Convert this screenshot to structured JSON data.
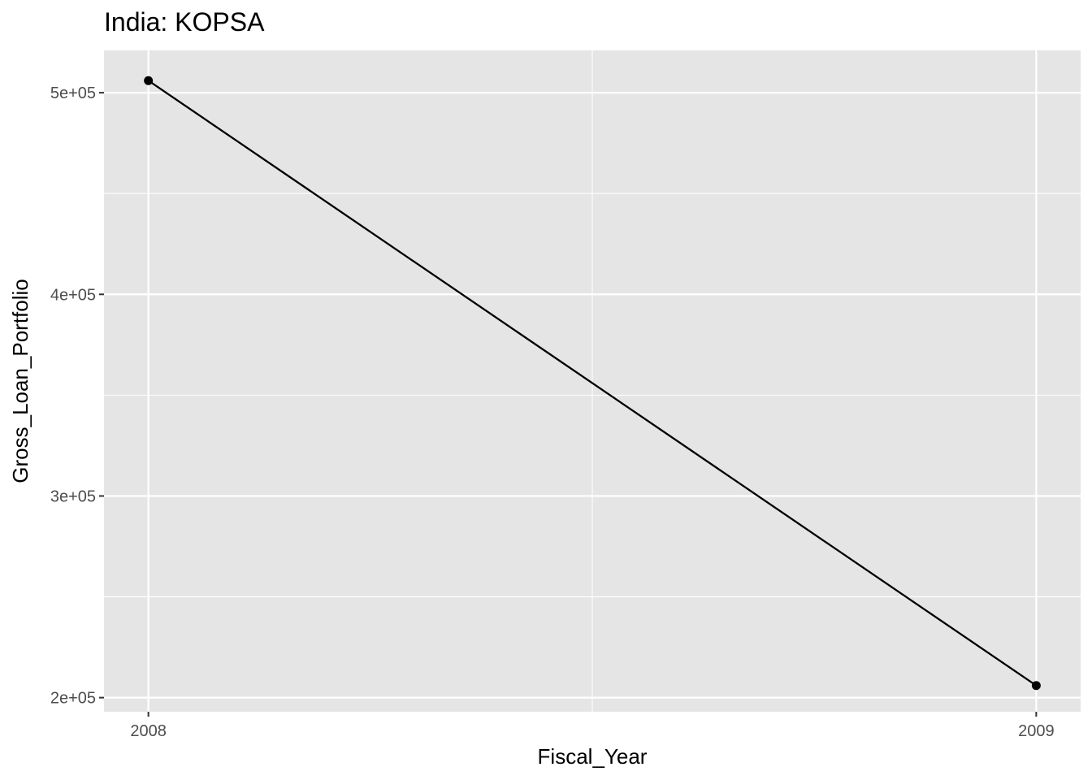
{
  "chart_data": {
    "type": "line",
    "title": "India:  KOPSA",
    "xlabel": "Fiscal_Year",
    "ylabel": "Gross_Loan_Portfolio",
    "x": [
      2008,
      2009
    ],
    "series": [
      {
        "name": "Gross_Loan_Portfolio",
        "values": [
          506000,
          206000
        ]
      }
    ],
    "xlim": [
      2007.95,
      2009.05
    ],
    "ylim": [
      193000,
      521000
    ],
    "x_ticks": [
      {
        "value": 2008,
        "label": "2008"
      },
      {
        "value": 2009,
        "label": "2009"
      }
    ],
    "y_ticks": [
      {
        "value": 200000,
        "label": "2e+05"
      },
      {
        "value": 300000,
        "label": "3e+05"
      },
      {
        "value": 400000,
        "label": "4e+05"
      },
      {
        "value": 500000,
        "label": "5e+05"
      }
    ],
    "y_minor_ticks": [
      250000,
      350000,
      450000
    ],
    "x_minor_ticks": [
      2008.5
    ],
    "grid": true,
    "colors": {
      "panel": "#e5e5e5",
      "grid": "#ffffff",
      "line": "#000000",
      "tick_label": "#4d4d4d",
      "tick": "#333333"
    }
  }
}
